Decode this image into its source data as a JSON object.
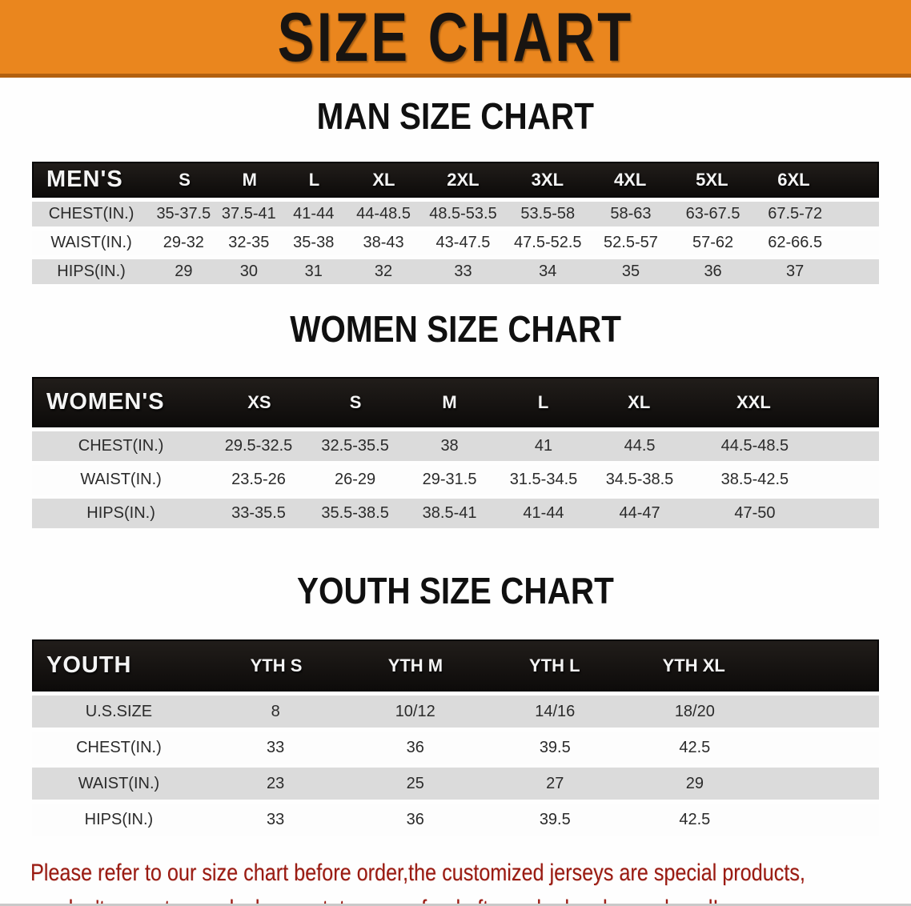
{
  "banner": {
    "title": "SIZE CHART"
  },
  "sections": {
    "men": {
      "heading": "MAN SIZE CHART",
      "table": {
        "corner": "MEN'S",
        "columns": [
          "S",
          "M",
          "L",
          "XL",
          "2XL",
          "3XL",
          "4XL",
          "5XL",
          "6XL"
        ],
        "rows": [
          {
            "label": "CHEST(IN.)",
            "values": [
              "35-37.5",
              "37.5-41",
              "41-44",
              "44-48.5",
              "48.5-53.5",
              "53.5-58",
              "58-63",
              "63-67.5",
              "67.5-72"
            ]
          },
          {
            "label": "WAIST(IN.)",
            "values": [
              "29-32",
              "32-35",
              "35-38",
              "38-43",
              "43-47.5",
              "47.5-52.5",
              "52.5-57",
              "57-62",
              "62-66.5"
            ]
          },
          {
            "label": "HIPS(IN.)",
            "values": [
              "29",
              "30",
              "31",
              "32",
              "33",
              "34",
              "35",
              "36",
              "37"
            ]
          }
        ]
      }
    },
    "women": {
      "heading": "WOMEN SIZE CHART",
      "table": {
        "corner": "WOMEN'S",
        "columns": [
          "XS",
          "S",
          "M",
          "L",
          "XL",
          "XXL"
        ],
        "rows": [
          {
            "label": "CHEST(IN.)",
            "values": [
              "29.5-32.5",
              "32.5-35.5",
              "38",
              "41",
              "44.5",
              "44.5-48.5"
            ]
          },
          {
            "label": "WAIST(IN.)",
            "values": [
              "23.5-26",
              "26-29",
              "29-31.5",
              "31.5-34.5",
              "34.5-38.5",
              "38.5-42.5"
            ]
          },
          {
            "label": "HIPS(IN.)",
            "values": [
              "33-35.5",
              "35.5-38.5",
              "38.5-41",
              "41-44",
              "44-47",
              "47-50"
            ]
          }
        ]
      }
    },
    "youth": {
      "heading": "YOUTH SIZE CHART",
      "table": {
        "corner": "YOUTH",
        "columns": [
          "YTH S",
          "YTH M",
          "YTH L",
          "YTH XL"
        ],
        "rows": [
          {
            "label": "U.S.SIZE",
            "values": [
              "8",
              "10/12",
              "14/16",
              "18/20"
            ]
          },
          {
            "label": "CHEST(IN.)",
            "values": [
              "33",
              "36",
              "39.5",
              "42.5"
            ]
          },
          {
            "label": "WAIST(IN.)",
            "values": [
              "23",
              "25",
              "27",
              "29"
            ]
          },
          {
            "label": "HIPS(IN.)",
            "values": [
              "33",
              "36",
              "39.5",
              "42.5"
            ]
          }
        ]
      }
    }
  },
  "footer": {
    "line1": "Please refer to our size chart before order,the customized jerseys are special products,",
    "line2": "we don't accept cancel, change, teturn or refund after order has been placed!"
  },
  "colors": {
    "banner_orange": "#EA861E",
    "banner_border": "#B2600F",
    "header_bar_black": "#151210",
    "row_gray": "#DBDBDB",
    "footer_red": "#9A1B12"
  }
}
